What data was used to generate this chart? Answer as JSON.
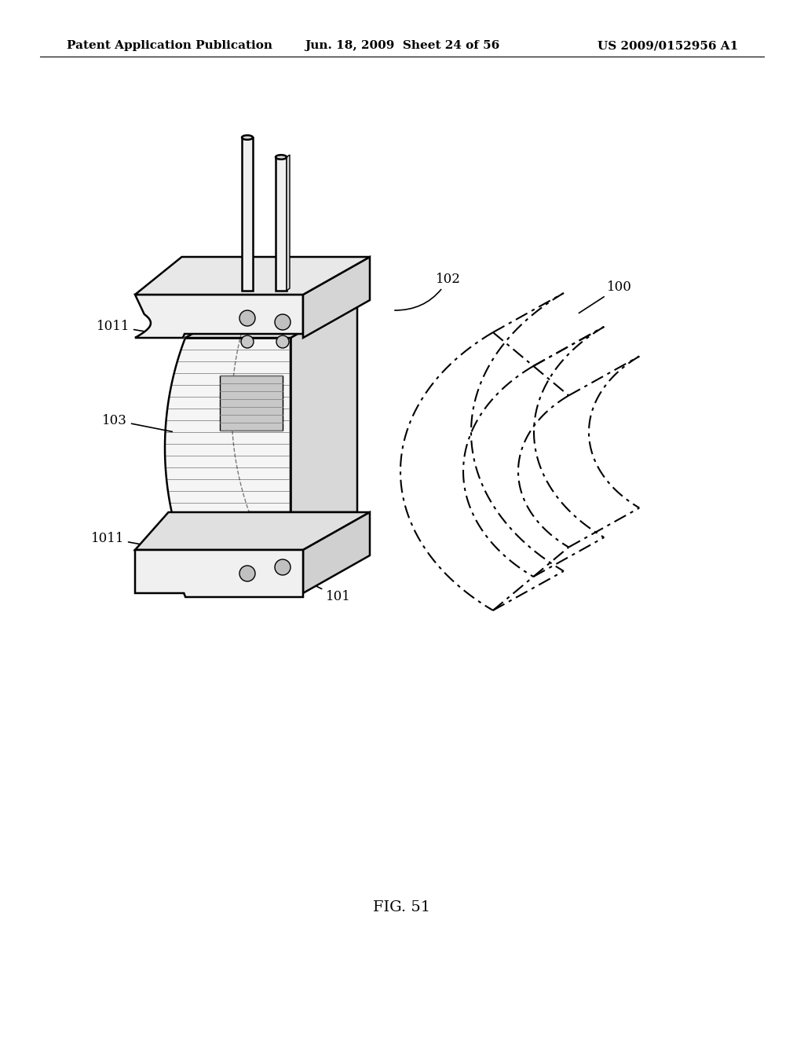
{
  "bg_color": "#ffffff",
  "line_color": "#000000",
  "header_left": "Patent Application Publication",
  "header_mid": "Jun. 18, 2009  Sheet 24 of 56",
  "header_right": "US 2009/0152956 A1",
  "figure_label": "FIG. 51",
  "title_fontsize": 11,
  "label_fontsize": 12,
  "fig_label_fontsize": 14
}
